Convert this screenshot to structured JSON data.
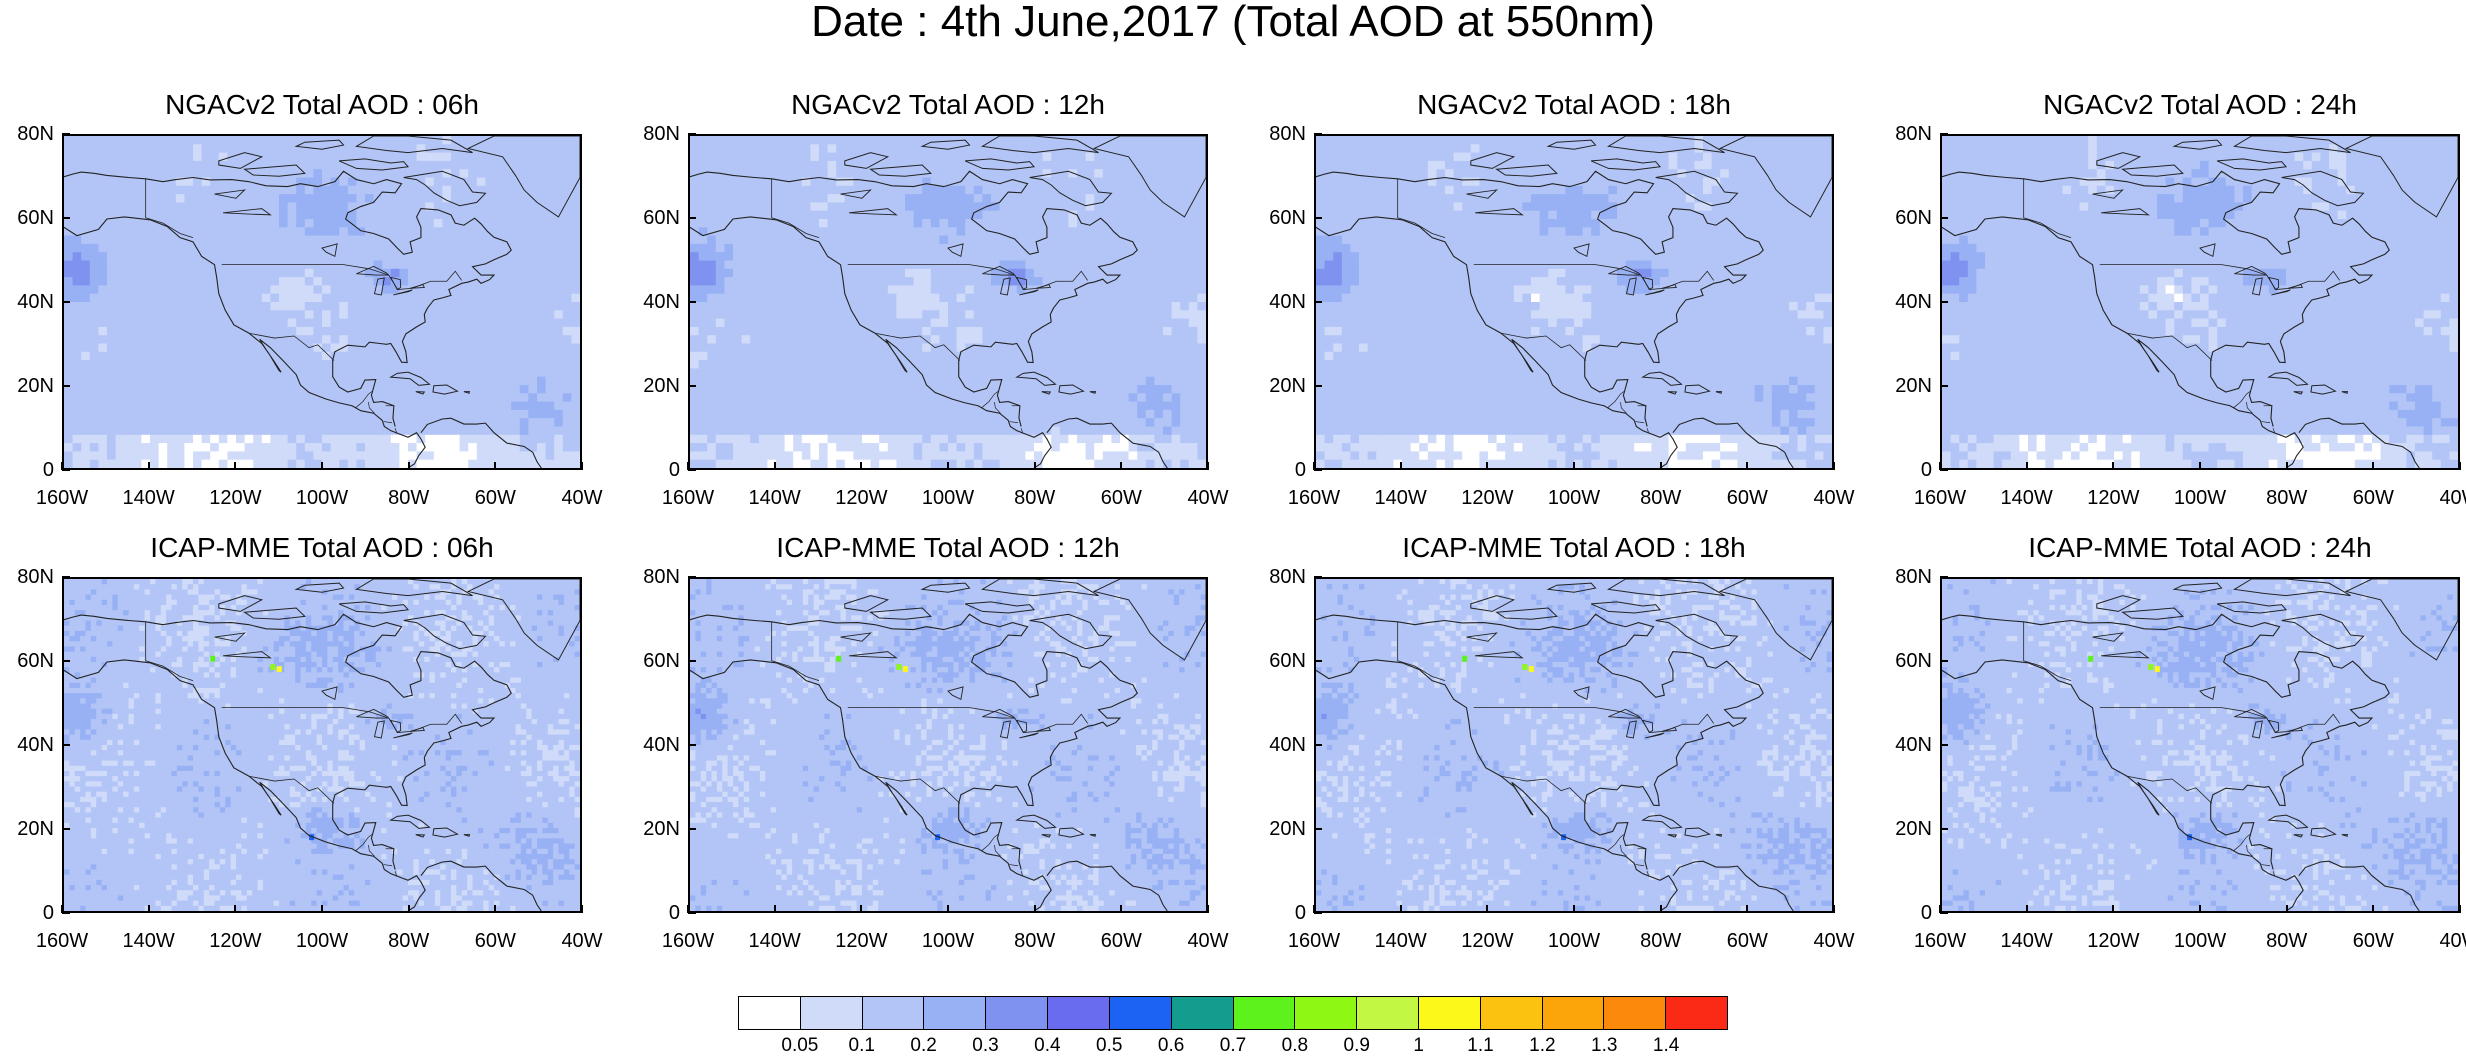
{
  "title": "Date : 4th June,2017 (Total AOD at 550nm)",
  "panels": [
    {
      "title": "NGACv2 Total AOD : 06h",
      "model": "NGACv2"
    },
    {
      "title": "NGACv2 Total AOD : 12h",
      "model": "NGACv2"
    },
    {
      "title": "NGACv2 Total AOD : 18h",
      "model": "NGACv2"
    },
    {
      "title": "NGACv2 Total AOD : 24h",
      "model": "NGACv2"
    },
    {
      "title": "ICAP-MME Total AOD : 06h",
      "model": "ICAP-MME"
    },
    {
      "title": "ICAP-MME Total AOD : 12h",
      "model": "ICAP-MME"
    },
    {
      "title": "ICAP-MME Total AOD : 18h",
      "model": "ICAP-MME"
    },
    {
      "title": "ICAP-MME Total AOD : 24h",
      "model": "ICAP-MME"
    }
  ],
  "axes": {
    "lat_labels": [
      "80N",
      "60N",
      "40N",
      "20N",
      "0"
    ],
    "lon_labels": [
      "160W",
      "140W",
      "120W",
      "100W",
      "80W",
      "60W",
      "40W"
    ],
    "lat_range": [
      0,
      80
    ],
    "lon_range": [
      -160,
      -40
    ]
  },
  "colorbar": {
    "colors": [
      "#ffffff",
      "#cfdbf9",
      "#b2c5f6",
      "#98b1f4",
      "#7f92ef",
      "#6a6cf0",
      "#1d63f3",
      "#129d8f",
      "#5df21c",
      "#8ef714",
      "#c2f843",
      "#fbf81a",
      "#fbc20f",
      "#fba50b",
      "#fb8a0c",
      "#fb2a17"
    ],
    "labels": [
      "0.05",
      "0.1",
      "0.2",
      "0.3",
      "0.4",
      "0.5",
      "0.6",
      "0.7",
      "0.8",
      "0.9",
      "1",
      "1.1",
      "1.2",
      "1.3",
      "1.4"
    ]
  }
}
